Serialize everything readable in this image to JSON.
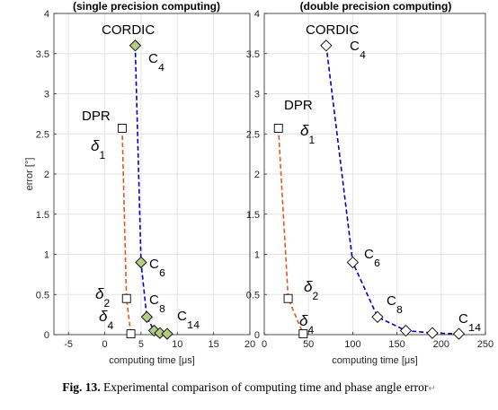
{
  "chart_data": [
    {
      "type": "line",
      "title": "(single precision computing)",
      "xlabel": "computing time [μs]",
      "ylabel": "error [°]",
      "xlim": [
        -7,
        20
      ],
      "ylim": [
        0,
        4
      ],
      "xticks": [
        -5,
        0,
        5,
        10,
        15,
        20
      ],
      "yticks": [
        0,
        0.5,
        1,
        1.5,
        2,
        2.5,
        3,
        3.5,
        4
      ],
      "grid": true,
      "series": [
        {
          "name": "CORDIC",
          "marker": "diamond",
          "fill": "#b4cc84",
          "line_color": "#0000cc",
          "x": [
            4.2,
            5.0,
            5.8,
            6.8,
            7.6,
            8.6
          ],
          "y": [
            3.6,
            0.9,
            0.22,
            0.05,
            0.02,
            0.01
          ]
        },
        {
          "name": "DPR",
          "marker": "square",
          "fill": "#ffffff",
          "line_color": "#e05a1e",
          "x": [
            2.4,
            3.0,
            3.6
          ],
          "y": [
            2.57,
            0.45,
            0.01
          ]
        }
      ],
      "annotations": [
        {
          "text": "CORDIC",
          "style": "mono"
        },
        {
          "base": "C",
          "sub": "4",
          "style": "mono"
        },
        {
          "base": "C",
          "sub": "6",
          "style": "mono"
        },
        {
          "base": "C",
          "sub": "8",
          "style": "mono"
        },
        {
          "base": "C",
          "sub": "14",
          "style": "mono"
        },
        {
          "text": "DPR",
          "style": "mono"
        },
        {
          "base": "δ",
          "sub": "1",
          "style": "italic"
        },
        {
          "base": "δ",
          "sub": "2",
          "style": "italic"
        },
        {
          "base": "δ",
          "sub": "4",
          "style": "italic"
        }
      ]
    },
    {
      "type": "line",
      "title": "(double precision computing)",
      "xlabel": "computing time [μs]",
      "ylabel": "",
      "xlim": [
        0,
        250
      ],
      "ylim": [
        0,
        4
      ],
      "xticks": [
        0,
        50,
        100,
        150,
        200,
        250
      ],
      "yticks": [
        0,
        0.5,
        1,
        1.5,
        2,
        2.5,
        3,
        3.5,
        4
      ],
      "grid": true,
      "series": [
        {
          "name": "CORDIC",
          "marker": "diamond",
          "fill": "#ffffff",
          "line_color": "#0000cc",
          "x": [
            70,
            100,
            128,
            160,
            190,
            220
          ],
          "y": [
            3.6,
            0.9,
            0.22,
            0.05,
            0.02,
            0.01
          ]
        },
        {
          "name": "DPR",
          "marker": "square",
          "fill": "#ffffff",
          "line_color": "#e05a1e",
          "x": [
            16,
            27,
            44
          ],
          "y": [
            2.57,
            0.45,
            0.01
          ]
        }
      ],
      "annotations": [
        {
          "text": "CORDIC",
          "style": "mono"
        },
        {
          "base": "C",
          "sub": "4",
          "style": "mono"
        },
        {
          "base": "C",
          "sub": "6",
          "style": "mono"
        },
        {
          "base": "C",
          "sub": "8",
          "style": "mono"
        },
        {
          "base": "C",
          "sub": "14",
          "style": "mono"
        },
        {
          "text": "DPR",
          "style": "mono"
        },
        {
          "base": "δ",
          "sub": "1",
          "style": "italic"
        },
        {
          "base": "δ",
          "sub": "2",
          "style": "italic"
        },
        {
          "base": "δ",
          "sub": "4",
          "style": "italic"
        }
      ]
    }
  ],
  "caption": {
    "label": "Fig. 13.",
    "text": " Experimental comparison of computing time and phase angle error",
    "return_mark": "↵"
  }
}
